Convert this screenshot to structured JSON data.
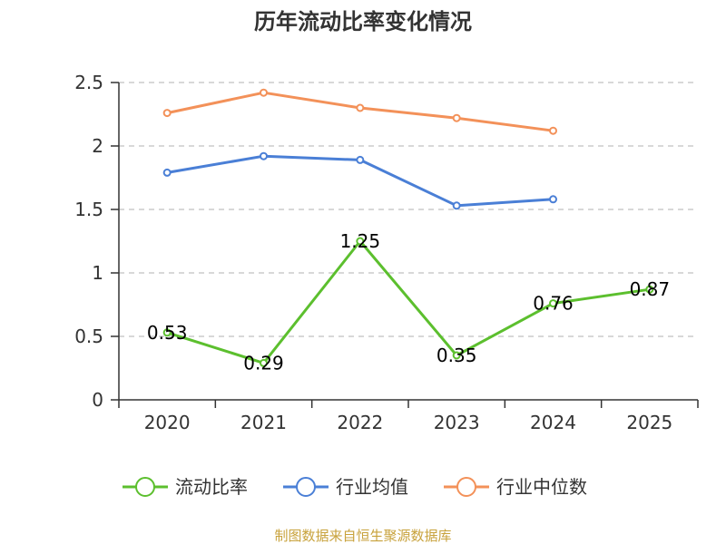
{
  "chart_data": {
    "type": "line",
    "title": "历年流动比率变化情况",
    "categories": [
      "2020",
      "2021",
      "2022",
      "2023",
      "2024",
      "2025"
    ],
    "ylim": [
      0,
      2.5
    ],
    "yticks": [
      "0",
      "0.5",
      "1",
      "1.5",
      "2",
      "2.5"
    ],
    "grid": true,
    "legend_position": "bottom",
    "series": [
      {
        "name": "流动比率",
        "color": "#5cbf2e",
        "values": [
          0.53,
          0.29,
          1.25,
          0.35,
          0.76,
          0.87
        ],
        "labels": [
          "0.53",
          "0.29",
          "1.25",
          "0.35",
          "0.76",
          "0.87"
        ]
      },
      {
        "name": "行业均值",
        "color": "#4a7fd6",
        "values": [
          1.79,
          1.92,
          1.89,
          1.53,
          1.58,
          null
        ]
      },
      {
        "name": "行业中位数",
        "color": "#f39159",
        "values": [
          2.26,
          2.42,
          2.3,
          2.22,
          2.12,
          null
        ]
      }
    ]
  },
  "footer": {
    "source": "制图数据来自恒生聚源数据库"
  }
}
